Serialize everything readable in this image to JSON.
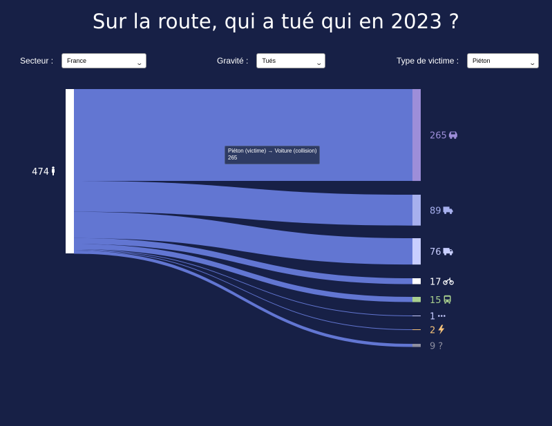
{
  "page": {
    "title": "Sur la route, qui a tué qui en 2023 ?"
  },
  "filters": {
    "sector": {
      "label": "Secteur :",
      "value": "France"
    },
    "severity": {
      "label": "Gravité :",
      "value": "Tués"
    },
    "victim_type": {
      "label": "Type de victime :",
      "value": "Piéton"
    }
  },
  "tooltip": {
    "line1": "Piéton (victime) → Voiture (collision)",
    "line2": "265"
  },
  "chart_data": {
    "type": "sankey",
    "title": "Sur la route, qui a tué qui en 2023 ?",
    "source": {
      "value": 474,
      "icon": "pedestrian-icon",
      "color": "#ffffff"
    },
    "link_color": "#6276d2",
    "targets": [
      {
        "value": 265,
        "icon": "car-icon",
        "color": "#9d8ed9"
      },
      {
        "value": 89,
        "icon": "van-icon",
        "color": "#a7b0ee"
      },
      {
        "value": 76,
        "icon": "truck-icon",
        "color": "#c8ceff"
      },
      {
        "value": 17,
        "icon": "motorcycle-icon",
        "color": "#ffffff"
      },
      {
        "value": 15,
        "icon": "bus-icon",
        "color": "#a8cf8e"
      },
      {
        "value": 1,
        "icon": "other-dots-icon",
        "color": "#c7ccff"
      },
      {
        "value": 2,
        "icon": "lightning-icon",
        "color": "#f5c27a"
      },
      {
        "value": 9,
        "icon": "unknown-icon",
        "color": "#8e8fa0"
      }
    ]
  }
}
